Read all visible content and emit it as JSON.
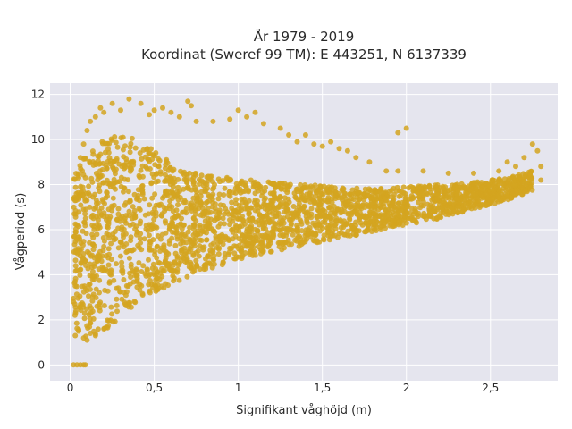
{
  "chart_data": {
    "type": "scatter",
    "title": "År 1979 - 2019",
    "subtitle": "Koordinat (Sweref 99 TM): E 443251, N 6137339",
    "xlabel": "Signifikant våghöjd (m)",
    "ylabel": "Vågperiod (s)",
    "xlim": [
      -0.12,
      2.9
    ],
    "ylim": [
      -0.7,
      12.5
    ],
    "x_ticks": [
      0,
      0.5,
      1,
      1.5,
      2,
      2.5
    ],
    "x_tick_labels": [
      "0",
      "0,5",
      "1",
      "1,5",
      "2",
      "2,5"
    ],
    "y_ticks": [
      0,
      2,
      4,
      6,
      8,
      10,
      12
    ],
    "y_tick_labels": [
      "0",
      "2",
      "4",
      "6",
      "8",
      "10",
      "12"
    ],
    "grid": true,
    "legend": "none",
    "colors": {
      "marker": "#D4A520",
      "plot_bg": "#E5E5EE",
      "grid": "#FFFFFF"
    },
    "series": [
      {
        "points": [
          [
            0.02,
            0
          ],
          [
            0.04,
            0
          ],
          [
            0.06,
            0
          ],
          [
            0.08,
            0
          ],
          [
            0.09,
            0
          ],
          [
            0.03,
            1.3
          ],
          [
            0.05,
            1.5
          ],
          [
            0.08,
            1.2
          ],
          [
            0.1,
            1.1
          ],
          [
            0.12,
            1.4
          ],
          [
            0.15,
            1.3
          ],
          [
            0.2,
            1.6
          ],
          [
            0.02,
            2.8
          ],
          [
            0.03,
            3.5
          ],
          [
            0.04,
            4.2
          ],
          [
            0.05,
            5
          ],
          [
            0.04,
            6.2
          ],
          [
            0.06,
            7.5
          ],
          [
            0.05,
            8.3
          ],
          [
            0.06,
            9.2
          ],
          [
            0.08,
            9.8
          ],
          [
            0.1,
            10.4
          ],
          [
            0.12,
            10.8
          ],
          [
            0.15,
            11
          ],
          [
            0.18,
            11.4
          ],
          [
            0.2,
            11.2
          ],
          [
            0.25,
            11.6
          ],
          [
            0.3,
            11.3
          ],
          [
            0.35,
            11.8
          ],
          [
            0.42,
            11.6
          ],
          [
            0.47,
            11.1
          ],
          [
            0.5,
            11.3
          ],
          [
            0.55,
            11.4
          ],
          [
            0.6,
            11.2
          ],
          [
            0.65,
            11.0
          ],
          [
            0.7,
            11.7
          ],
          [
            0.72,
            11.5
          ],
          [
            0.75,
            10.8
          ],
          [
            0.85,
            10.8
          ],
          [
            0.95,
            10.9
          ],
          [
            1.0,
            11.3
          ],
          [
            1.05,
            11.0
          ],
          [
            1.1,
            11.2
          ],
          [
            1.15,
            10.7
          ],
          [
            1.25,
            10.5
          ],
          [
            1.3,
            10.2
          ],
          [
            1.35,
            9.9
          ],
          [
            1.4,
            10.2
          ],
          [
            1.45,
            9.8
          ],
          [
            1.5,
            9.7
          ],
          [
            1.55,
            9.9
          ],
          [
            1.6,
            9.6
          ],
          [
            1.65,
            9.5
          ],
          [
            1.7,
            9.2
          ],
          [
            1.78,
            9.0
          ],
          [
            1.88,
            8.6
          ],
          [
            1.95,
            8.6
          ],
          [
            1.95,
            10.3
          ],
          [
            2.0,
            10.5
          ],
          [
            2.1,
            8.6
          ],
          [
            2.25,
            8.5
          ],
          [
            2.4,
            8.5
          ],
          [
            2.55,
            8.6
          ],
          [
            2.6,
            9.0
          ],
          [
            2.65,
            8.8
          ],
          [
            2.7,
            9.2
          ],
          [
            2.75,
            9.8
          ],
          [
            2.78,
            9.5
          ],
          [
            2.8,
            8.8
          ],
          [
            2.8,
            8.2
          ]
        ]
      }
    ],
    "dense_region": {
      "upper_envelope": [
        [
          0.02,
          8.3
        ],
        [
          0.1,
          9.5
        ],
        [
          0.2,
          10.0
        ],
        [
          0.3,
          10.2
        ],
        [
          0.4,
          10.0
        ],
        [
          0.5,
          9.5
        ],
        [
          0.6,
          9.0
        ],
        [
          0.7,
          8.6
        ],
        [
          0.8,
          8.4
        ],
        [
          1.0,
          8.3
        ],
        [
          1.2,
          8.1
        ],
        [
          1.4,
          8.0
        ],
        [
          1.6,
          7.9
        ],
        [
          1.8,
          7.8
        ],
        [
          2.0,
          7.9
        ],
        [
          2.2,
          8.0
        ],
        [
          2.4,
          8.1
        ],
        [
          2.6,
          8.3
        ],
        [
          2.75,
          8.6
        ]
      ],
      "lower_envelope": [
        [
          0.02,
          1.4
        ],
        [
          0.1,
          1.1
        ],
        [
          0.2,
          1.5
        ],
        [
          0.3,
          2.1
        ],
        [
          0.4,
          2.7
        ],
        [
          0.5,
          3.1
        ],
        [
          0.6,
          3.6
        ],
        [
          0.7,
          3.9
        ],
        [
          0.8,
          4.2
        ],
        [
          1.0,
          4.6
        ],
        [
          1.2,
          5.0
        ],
        [
          1.4,
          5.3
        ],
        [
          1.6,
          5.6
        ],
        [
          1.8,
          5.9
        ],
        [
          2.0,
          6.2
        ],
        [
          2.2,
          6.5
        ],
        [
          2.4,
          6.9
        ],
        [
          2.6,
          7.3
        ],
        [
          2.75,
          7.7
        ]
      ]
    }
  }
}
